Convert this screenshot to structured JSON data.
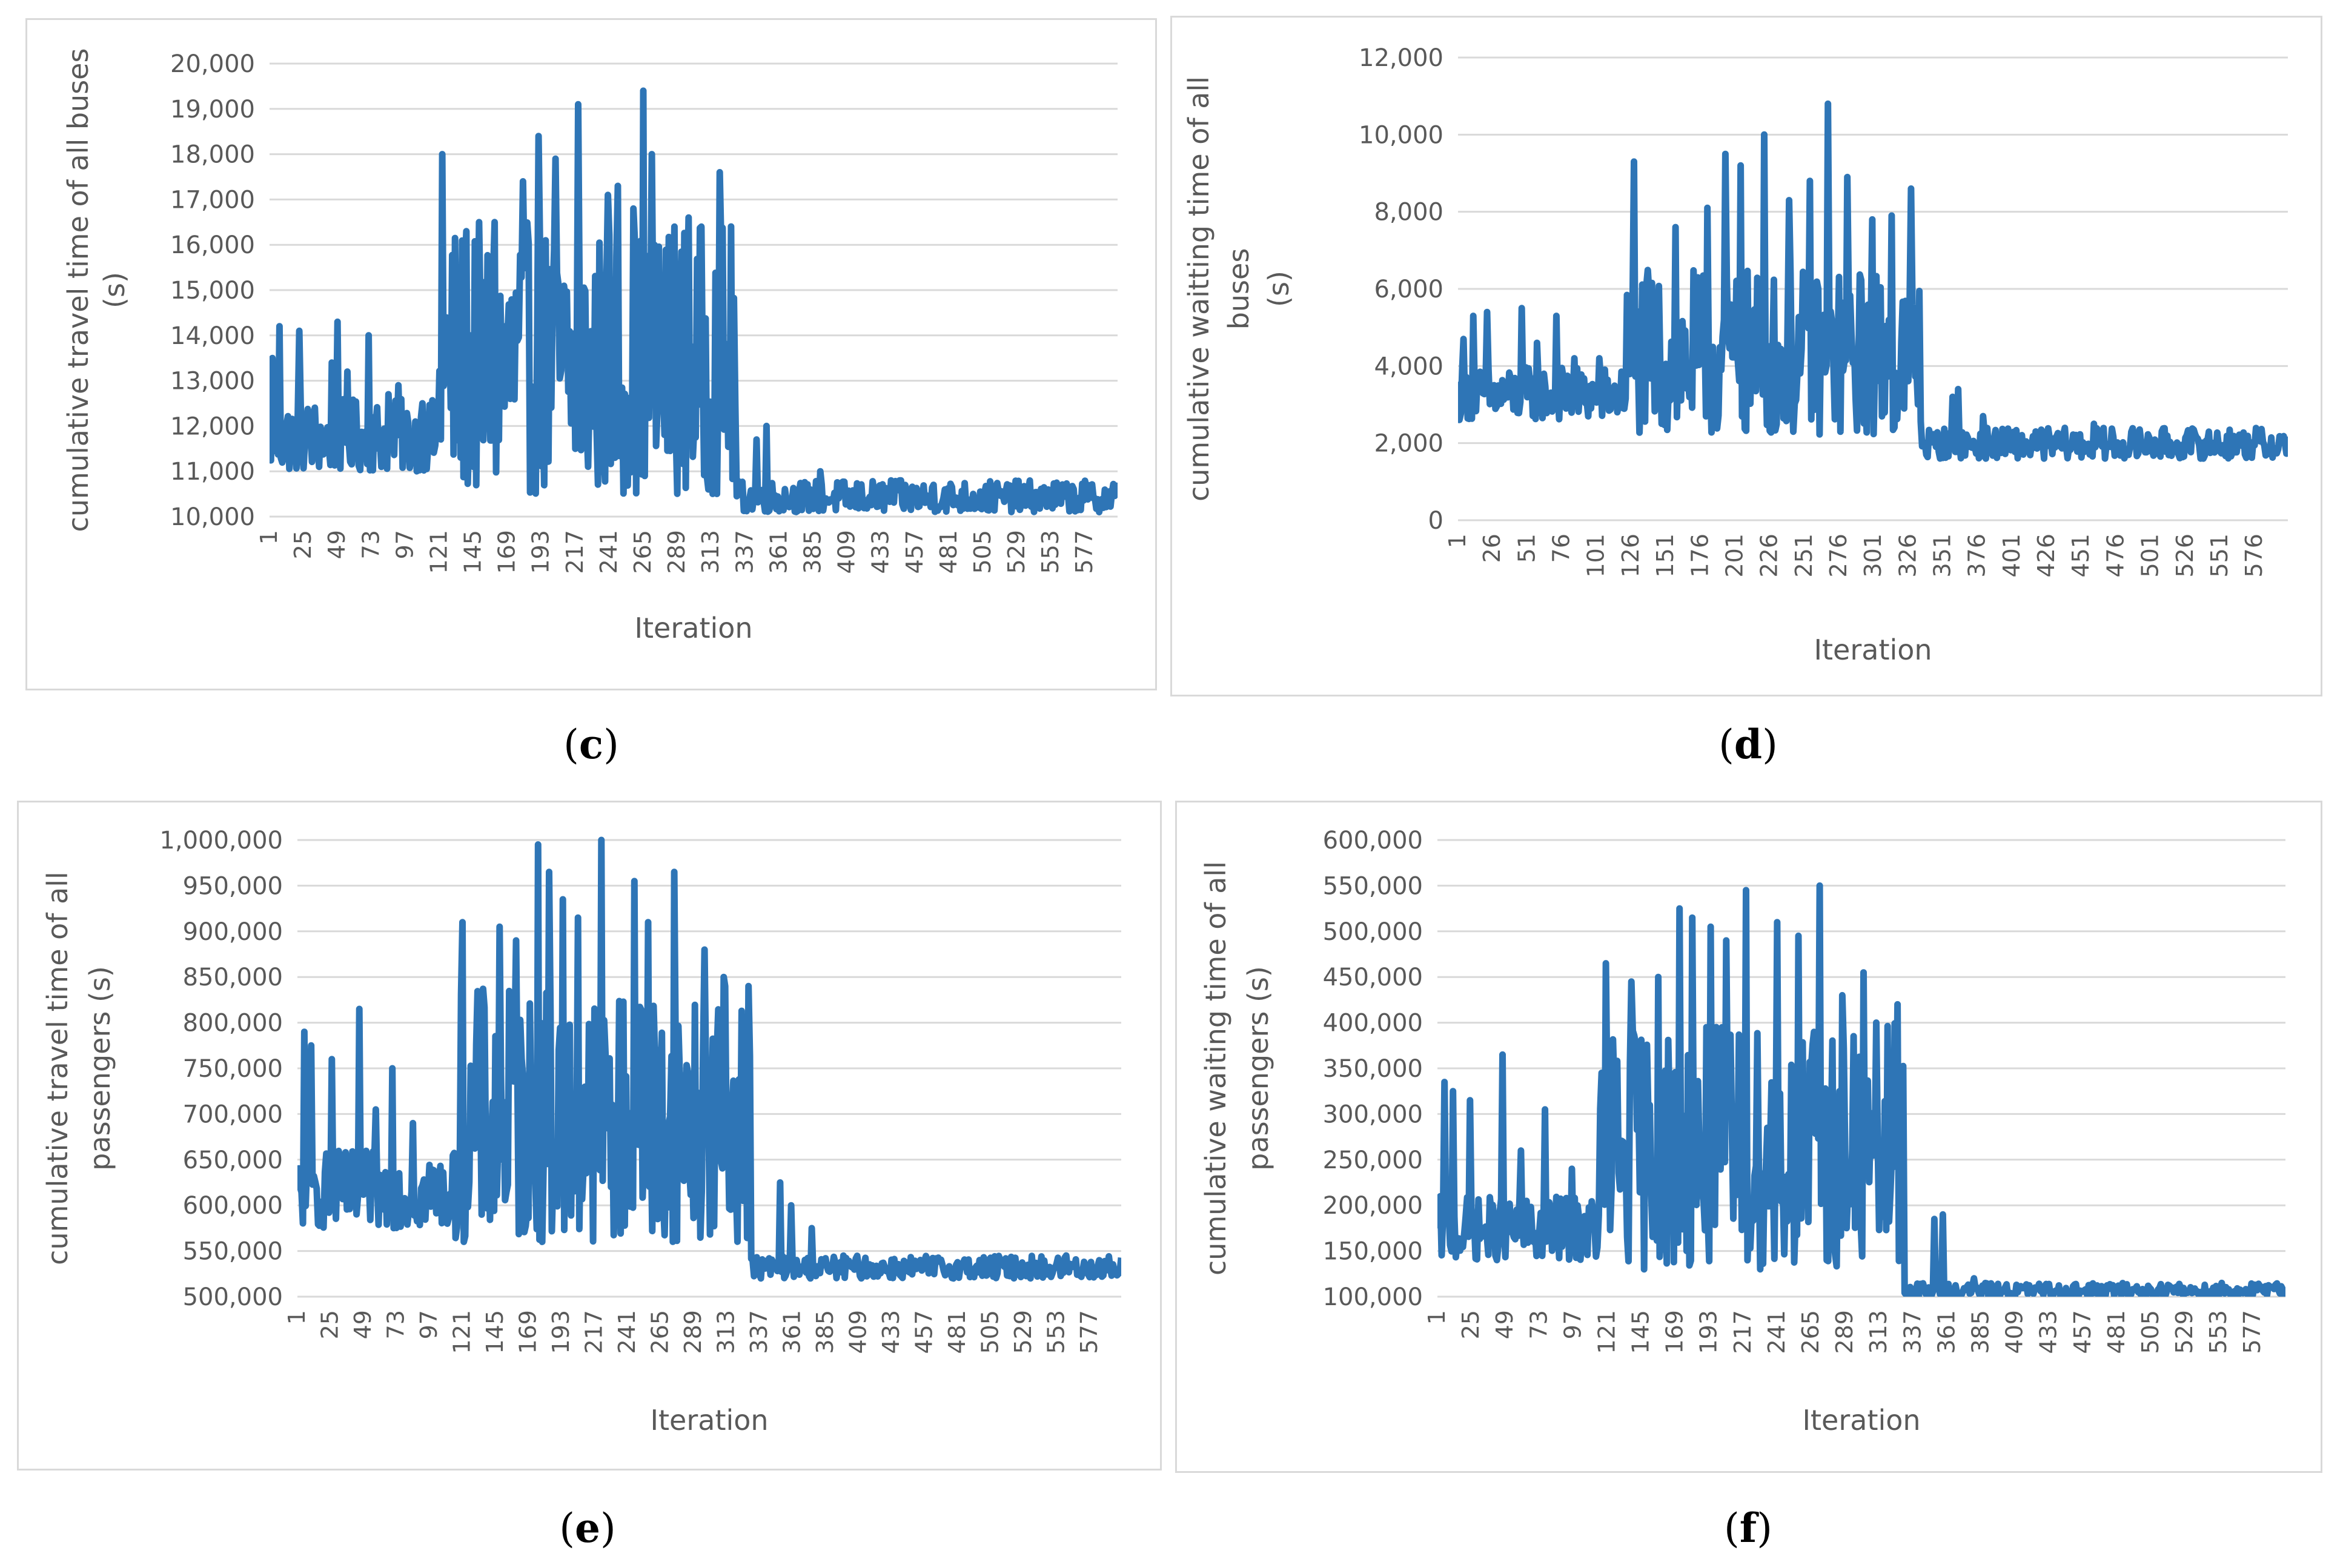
{
  "chart_data": [
    {
      "panel": "c",
      "type": "line",
      "ylabel": [
        "cumulative travel time of all buses",
        "(s)"
      ],
      "xlabel": "Iteration",
      "ylim": [
        10000,
        20000
      ],
      "ytick_values": [
        10000,
        11000,
        12000,
        13000,
        14000,
        15000,
        16000,
        17000,
        18000,
        19000,
        20000
      ],
      "ytick_labels": [
        "10,000",
        "11,000",
        "12,000",
        "13,000",
        "14,000",
        "15,000",
        "16,000",
        "17,000",
        "18,000",
        "19,000",
        "20,000"
      ],
      "xlim": [
        1,
        600
      ],
      "xtick_values": [
        1,
        25,
        49,
        73,
        97,
        121,
        145,
        169,
        193,
        217,
        241,
        265,
        289,
        313,
        337,
        361,
        385,
        409,
        433,
        457,
        481,
        505,
        529,
        553,
        577
      ],
      "xtick_labels": [
        "1",
        "25",
        "49",
        "73",
        "97",
        "121",
        "145",
        "169",
        "193",
        "217",
        "241",
        "265",
        "289",
        "313",
        "337",
        "361",
        "385",
        "409",
        "433",
        "457",
        "481",
        "505",
        "529",
        "553",
        "577"
      ],
      "series_color": "#2e75b6",
      "segments": [
        {
          "x0": 1,
          "x1": 120,
          "lo": 11000,
          "hi": 12600,
          "spikes": [
            [
              3,
              13500
            ],
            [
              8,
              14200
            ],
            [
              22,
              14100
            ],
            [
              45,
              13400
            ],
            [
              49,
              14300
            ],
            [
              56,
              13200
            ],
            [
              71,
              14000
            ],
            [
              85,
              12700
            ],
            [
              92,
              12900
            ],
            [
              109,
              12500
            ]
          ]
        },
        {
          "x0": 120,
          "x1": 330,
          "lo": 10500,
          "hi": 16500,
          "spikes": [
            [
              123,
              18000
            ],
            [
              140,
              16300
            ],
            [
              160,
              16500
            ],
            [
              180,
              17400
            ],
            [
              191,
              18400
            ],
            [
              203,
              17900
            ],
            [
              219,
              19100
            ],
            [
              240,
              17100
            ],
            [
              247,
              17300
            ],
            [
              258,
              16800
            ],
            [
              265,
              19400
            ],
            [
              271,
              18000
            ],
            [
              287,
              16400
            ],
            [
              297,
              16600
            ],
            [
              319,
              17600
            ]
          ]
        },
        {
          "x0": 330,
          "x1": 600,
          "lo": 10100,
          "hi": 10800,
          "spikes": [
            [
              345,
              11700
            ],
            [
              352,
              12000
            ],
            [
              390,
              11000
            ],
            [
              440,
              10800
            ],
            [
              470,
              10700
            ]
          ]
        }
      ]
    },
    {
      "panel": "d",
      "type": "line",
      "ylabel": [
        "cumulative waitting time of all",
        "buses",
        "(s)"
      ],
      "xlabel": "Iteration",
      "ylim": [
        0,
        12000
      ],
      "ytick_values": [
        0,
        2000,
        4000,
        6000,
        8000,
        10000,
        12000
      ],
      "ytick_labels": [
        "0",
        "2,000",
        "4,000",
        "6,000",
        "8,000",
        "10,000",
        "12,000"
      ],
      "xlim": [
        1,
        600
      ],
      "xtick_values": [
        1,
        26,
        51,
        76,
        101,
        126,
        151,
        176,
        201,
        226,
        251,
        276,
        301,
        326,
        351,
        376,
        401,
        426,
        451,
        476,
        501,
        526,
        551,
        576
      ],
      "xtick_labels": [
        "1",
        "26",
        "51",
        "76",
        "101",
        "126",
        "151",
        "176",
        "201",
        "226",
        "251",
        "276",
        "301",
        "326",
        "351",
        "376",
        "401",
        "426",
        "451",
        "476",
        "501",
        "526",
        "551",
        "576"
      ],
      "series_color": "#2e75b6",
      "segments": [
        {
          "x0": 1,
          "x1": 120,
          "lo": 2600,
          "hi": 4000,
          "spikes": [
            [
              5,
              4700
            ],
            [
              12,
              5300
            ],
            [
              22,
              5400
            ],
            [
              47,
              5500
            ],
            [
              58,
              4600
            ],
            [
              72,
              5300
            ],
            [
              85,
              4200
            ],
            [
              103,
              4200
            ]
          ]
        },
        {
          "x0": 120,
          "x1": 335,
          "lo": 2200,
          "hi": 6500,
          "spikes": [
            [
              128,
              9300
            ],
            [
              158,
              7600
            ],
            [
              181,
              8100
            ],
            [
              194,
              9500
            ],
            [
              205,
              9200
            ],
            [
              222,
              10000
            ],
            [
              240,
              8300
            ],
            [
              255,
              8800
            ],
            [
              268,
              10800
            ],
            [
              282,
              8900
            ],
            [
              300,
              7800
            ],
            [
              314,
              7900
            ],
            [
              328,
              8600
            ]
          ]
        },
        {
          "x0": 335,
          "x1": 600,
          "lo": 1600,
          "hi": 2400,
          "spikes": [
            [
              358,
              3200
            ],
            [
              362,
              3400
            ],
            [
              380,
              2700
            ],
            [
              460,
              2500
            ]
          ]
        }
      ]
    },
    {
      "panel": "e",
      "type": "line",
      "ylabel": [
        "cumulative travel time of all",
        "passengers (s)"
      ],
      "xlabel": "Iteration",
      "ylim": [
        500000,
        1000000
      ],
      "ytick_values": [
        500000,
        550000,
        600000,
        650000,
        700000,
        750000,
        800000,
        850000,
        900000,
        950000,
        1000000
      ],
      "ytick_labels": [
        "500,000",
        "550,000",
        "600,000",
        "650,000",
        "700,000",
        "750,000",
        "800,000",
        "850,000",
        "900,000",
        "950,000",
        "1,000,000"
      ],
      "xlim": [
        1,
        600
      ],
      "xtick_values": [
        1,
        25,
        49,
        73,
        97,
        121,
        145,
        169,
        193,
        217,
        241,
        265,
        289,
        313,
        337,
        361,
        385,
        409,
        433,
        457,
        481,
        505,
        529,
        553,
        577
      ],
      "xtick_labels": [
        "1",
        "25",
        "49",
        "73",
        "97",
        "121",
        "145",
        "169",
        "193",
        "217",
        "241",
        "265",
        "289",
        "313",
        "337",
        "361",
        "385",
        "409",
        "433",
        "457",
        "481",
        "505",
        "529",
        "553",
        "577"
      ],
      "series_color": "#2e75b6",
      "segments": [
        {
          "x0": 1,
          "x1": 115,
          "lo": 575000,
          "hi": 660000,
          "spikes": [
            [
              6,
              790000
            ],
            [
              11,
              775000
            ],
            [
              26,
              760000
            ],
            [
              46,
              815000
            ],
            [
              58,
              705000
            ],
            [
              70,
              750000
            ],
            [
              85,
              690000
            ]
          ]
        },
        {
          "x0": 115,
          "x1": 330,
          "lo": 560000,
          "hi": 840000,
          "spikes": [
            [
              121,
              910000
            ],
            [
              148,
              905000
            ],
            [
              160,
              890000
            ],
            [
              176,
              995000
            ],
            [
              184,
              965000
            ],
            [
              194,
              935000
            ],
            [
              205,
              915000
            ],
            [
              222,
              1000000
            ],
            [
              246,
              955000
            ],
            [
              256,
              910000
            ],
            [
              275,
              965000
            ],
            [
              297,
              880000
            ],
            [
              311,
              850000
            ],
            [
              329,
              840000
            ]
          ]
        },
        {
          "x0": 330,
          "x1": 600,
          "lo": 520000,
          "hi": 545000,
          "spikes": [
            [
              352,
              625000
            ],
            [
              360,
              600000
            ],
            [
              375,
              575000
            ],
            [
              560,
              545000
            ]
          ]
        }
      ]
    },
    {
      "panel": "f",
      "type": "line",
      "ylabel": [
        "cumulative waiting time of all",
        "passengers (s)"
      ],
      "xlabel": "Iteration",
      "ylim": [
        100000,
        600000
      ],
      "ytick_values": [
        100000,
        150000,
        200000,
        250000,
        300000,
        350000,
        400000,
        450000,
        500000,
        550000,
        600000
      ],
      "ytick_labels": [
        "100,000",
        "150,000",
        "200,000",
        "250,000",
        "300,000",
        "350,000",
        "400,000",
        "450,000",
        "500,000",
        "550,000",
        "600,000"
      ],
      "xlim": [
        1,
        600
      ],
      "xtick_values": [
        1,
        25,
        49,
        73,
        97,
        121,
        145,
        169,
        193,
        217,
        241,
        265,
        289,
        313,
        337,
        361,
        385,
        409,
        433,
        457,
        481,
        505,
        529,
        553,
        577
      ],
      "xtick_labels": [
        "1",
        "25",
        "49",
        "73",
        "97",
        "121",
        "145",
        "169",
        "193",
        "217",
        "241",
        "265",
        "289",
        "313",
        "337",
        "361",
        "385",
        "409",
        "433",
        "457",
        "481",
        "505",
        "529",
        "553",
        "577"
      ],
      "series_color": "#2e75b6",
      "segments": [
        {
          "x0": 1,
          "x1": 115,
          "lo": 140000,
          "hi": 210000,
          "spikes": [
            [
              6,
              335000
            ],
            [
              12,
              325000
            ],
            [
              24,
              315000
            ],
            [
              47,
              365000
            ],
            [
              60,
              260000
            ],
            [
              77,
              305000
            ],
            [
              96,
              240000
            ]
          ]
        },
        {
          "x0": 115,
          "x1": 330,
          "lo": 130000,
          "hi": 400000,
          "spikes": [
            [
              120,
              465000
            ],
            [
              138,
              445000
            ],
            [
              157,
              450000
            ],
            [
              172,
              525000
            ],
            [
              181,
              515000
            ],
            [
              194,
              505000
            ],
            [
              205,
              490000
            ],
            [
              219,
              545000
            ],
            [
              241,
              510000
            ],
            [
              256,
              495000
            ],
            [
              271,
              550000
            ],
            [
              287,
              430000
            ],
            [
              302,
              455000
            ],
            [
              326,
              420000
            ]
          ]
        },
        {
          "x0": 330,
          "x1": 600,
          "lo": 100000,
          "hi": 115000,
          "spikes": [
            [
              352,
              185000
            ],
            [
              358,
              190000
            ],
            [
              380,
              120000
            ],
            [
              555,
              115000
            ],
            [
              590,
              110000
            ]
          ]
        }
      ]
    }
  ],
  "captions": {
    "c": "c",
    "d": "d",
    "e": "e",
    "f": "f"
  }
}
